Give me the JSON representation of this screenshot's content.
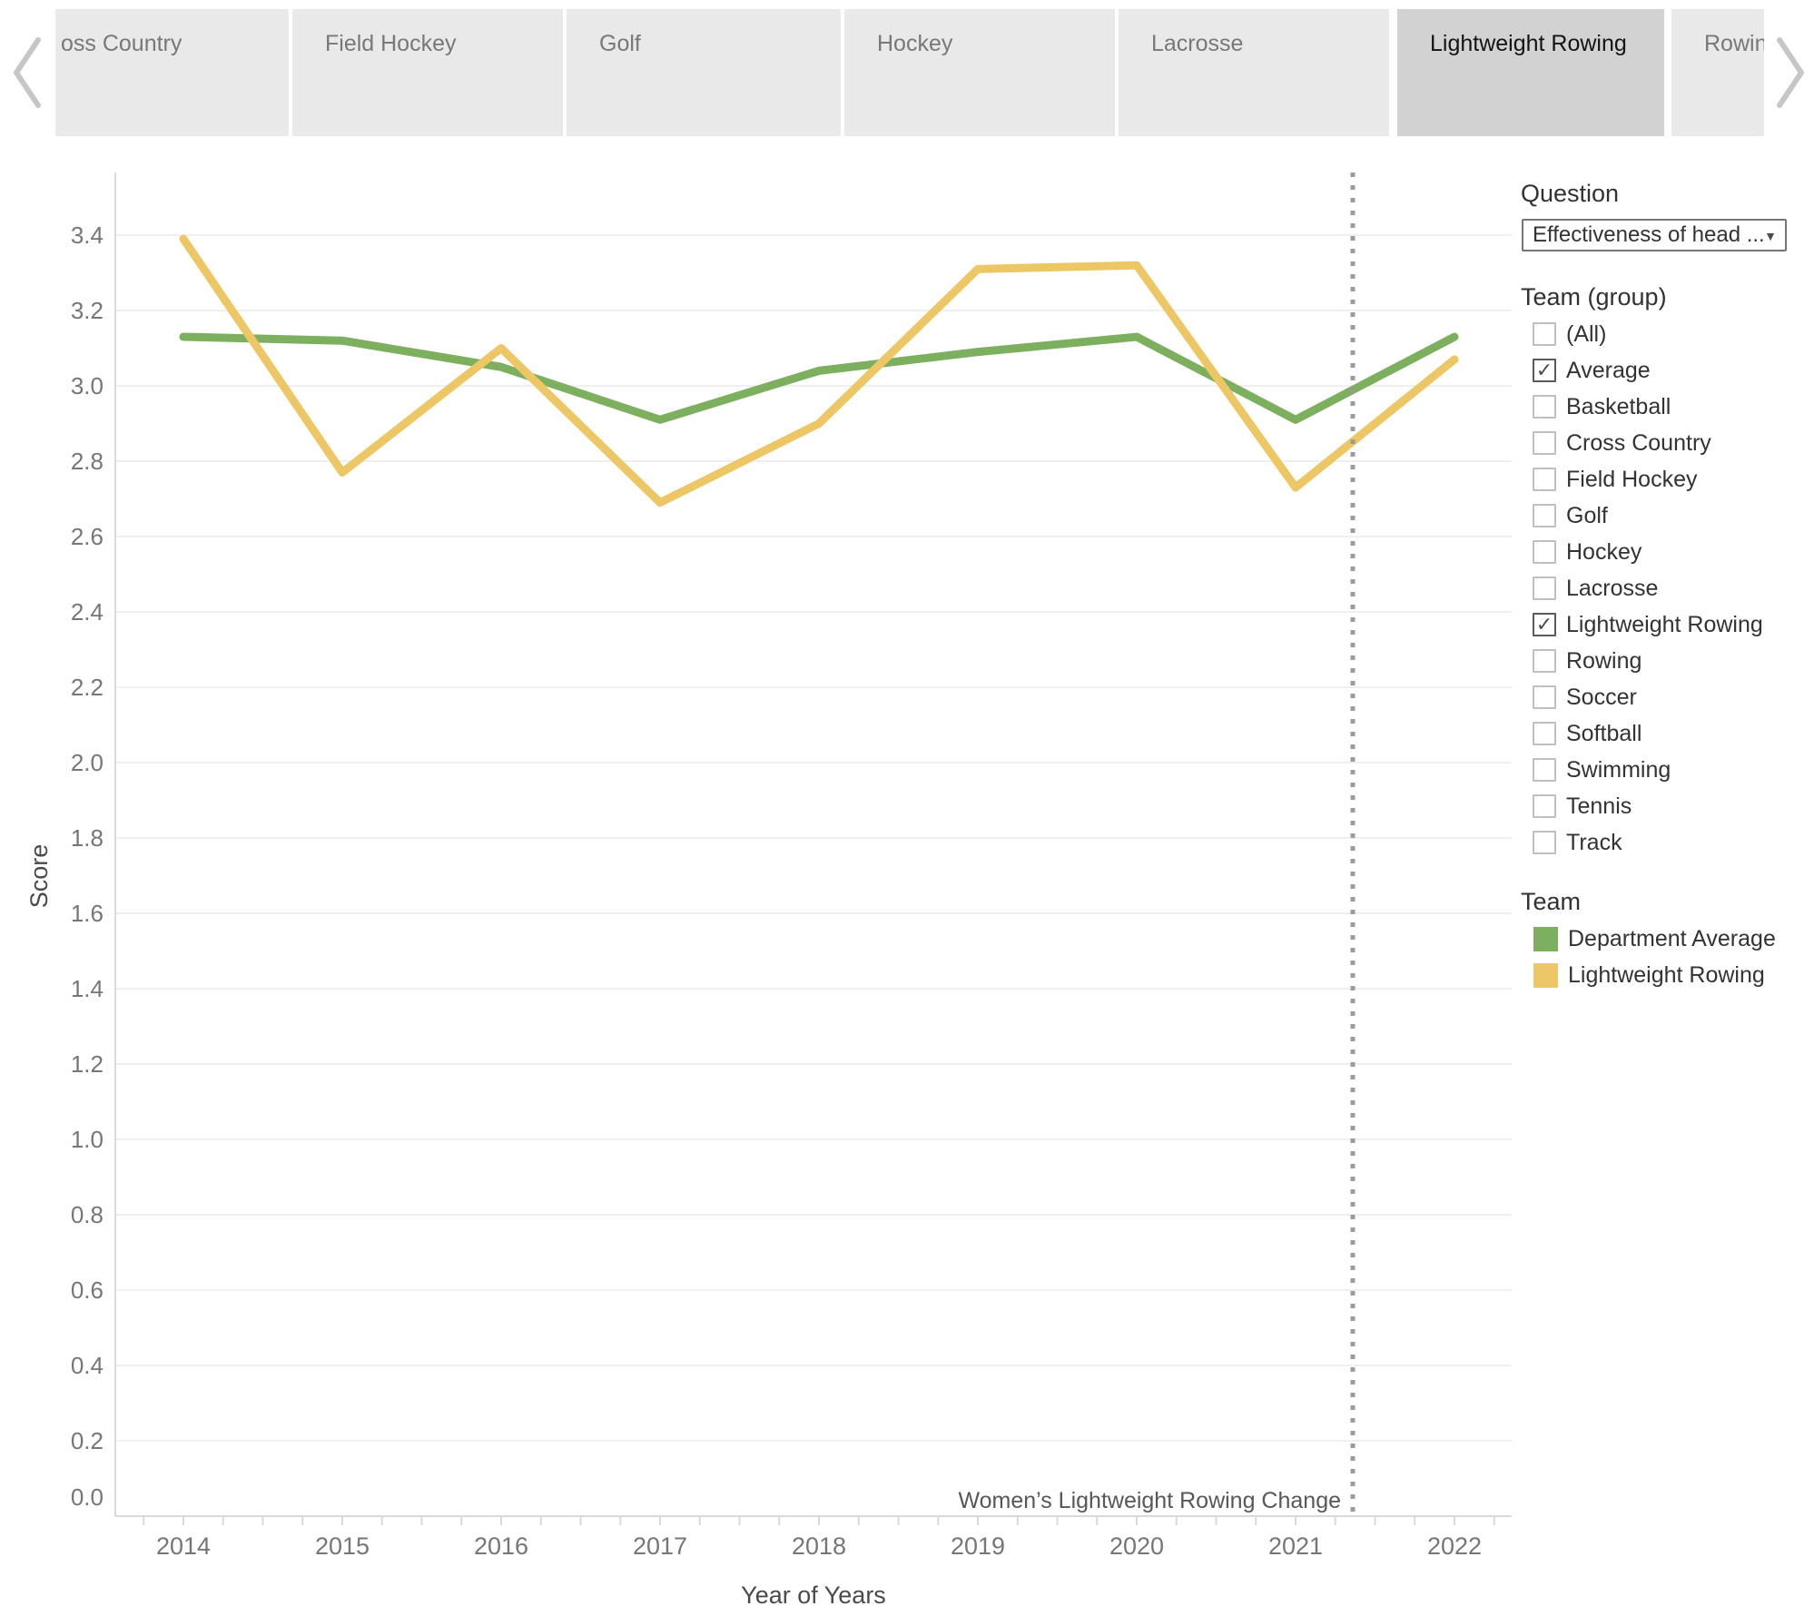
{
  "tab_bar": {
    "tabs": [
      {
        "label": "oss Country",
        "selected": false
      },
      {
        "label": "Field Hockey",
        "selected": false
      },
      {
        "label": "Golf",
        "selected": false
      },
      {
        "label": "Hockey",
        "selected": false
      },
      {
        "label": "Lacrosse",
        "selected": false
      },
      {
        "label": "Lightweight Rowing",
        "selected": true
      },
      {
        "label": "Rowing",
        "selected": false
      }
    ]
  },
  "side_panel": {
    "question": {
      "title": "Question",
      "dropdown_value": "Effectiveness of head ...",
      "dropdown_caret_icon": "▼"
    },
    "team_group": {
      "title": "Team (group)",
      "check_icon": "✓",
      "options": [
        {
          "label": "(All)",
          "checked": false
        },
        {
          "label": "Average",
          "checked": true
        },
        {
          "label": "Basketball",
          "checked": false
        },
        {
          "label": "Cross Country",
          "checked": false
        },
        {
          "label": "Field Hockey",
          "checked": false
        },
        {
          "label": "Golf",
          "checked": false
        },
        {
          "label": "Hockey",
          "checked": false
        },
        {
          "label": "Lacrosse",
          "checked": false
        },
        {
          "label": "Lightweight Rowing",
          "checked": true
        },
        {
          "label": "Rowing",
          "checked": false
        },
        {
          "label": "Soccer",
          "checked": false
        },
        {
          "label": "Softball",
          "checked": false
        },
        {
          "label": "Swimming",
          "checked": false
        },
        {
          "label": "Tennis",
          "checked": false
        },
        {
          "label": "Track",
          "checked": false
        }
      ]
    },
    "legend": {
      "title": "Team",
      "items": [
        {
          "label": "Department Average",
          "color": "#7CB05E"
        },
        {
          "label": "Lightweight Rowing",
          "color": "#EDC766"
        }
      ]
    }
  },
  "chart_data": {
    "type": "line",
    "x": [
      2014,
      2015,
      2016,
      2017,
      2018,
      2019,
      2020,
      2021,
      2022
    ],
    "series": [
      {
        "name": "Department Average",
        "color": "#7CB05E",
        "values": [
          3.13,
          3.12,
          3.05,
          2.91,
          3.04,
          3.09,
          3.13,
          2.91,
          3.13
        ]
      },
      {
        "name": "Lightweight Rowing",
        "color": "#EDC766",
        "values": [
          3.39,
          2.77,
          3.1,
          2.69,
          2.9,
          3.31,
          3.32,
          2.73,
          3.07
        ]
      }
    ],
    "xlabel": "Year of Years",
    "ylabel": "Score",
    "ylim": [
      0.0,
      3.4
    ],
    "ytick_step": 0.2,
    "xticks": [
      2014,
      2015,
      2016,
      2017,
      2018,
      2019,
      2020,
      2021,
      2022
    ],
    "grid": true,
    "legend_position": "right",
    "annotation": {
      "text": "Women’s Lightweight Rowing Change",
      "x": 2021.36
    },
    "reference_line": {
      "x": 2021.36,
      "style": "dotted"
    }
  }
}
